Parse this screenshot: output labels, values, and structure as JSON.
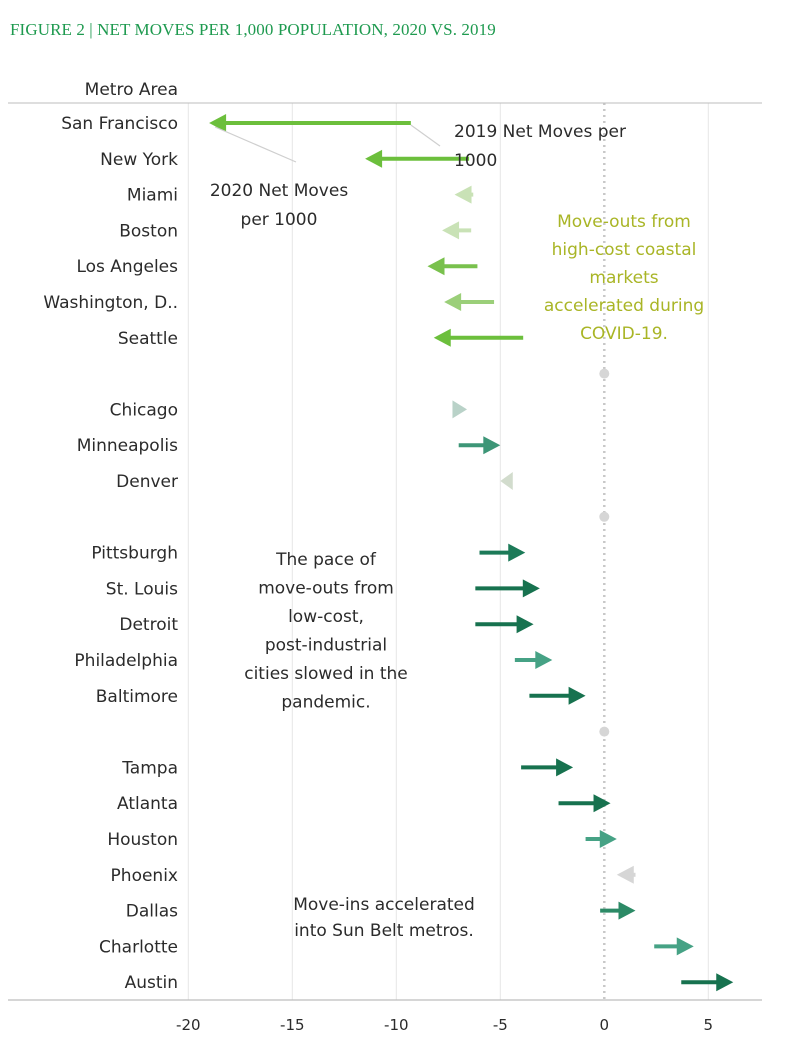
{
  "figure_title": "FIGURE 2 | NET MOVES PER 1,000 POPULATION, 2020 VS. 2019",
  "colors": {
    "title": "#1e9a4f",
    "grid": "#e6e6e6",
    "axis": "#bdbdbd",
    "zero_line": "#c8c8c8",
    "annotation_yellow": "#a9b526",
    "annotation_dark": "#2b2b2b"
  },
  "chart_data": {
    "type": "arrow",
    "column_header": "Metro Area",
    "xlim": [
      -21,
      7.5
    ],
    "xticks": [
      -20,
      -15,
      -10,
      -5,
      0,
      5
    ],
    "grid": true,
    "rows": [
      {
        "label": "San Francisco",
        "from_2019": -9.3,
        "to_2020": -19.0,
        "color": "#6cbf3c"
      },
      {
        "label": "New York",
        "from_2019": -6.5,
        "to_2020": -11.5,
        "color": "#6cbf3c"
      },
      {
        "label": "Miami",
        "from_2019": -6.3,
        "to_2020": -7.2,
        "color": "#c9e2b6"
      },
      {
        "label": "Boston",
        "from_2019": -6.4,
        "to_2020": -7.8,
        "color": "#c9e2b6"
      },
      {
        "label": "Los Angeles",
        "from_2019": -6.1,
        "to_2020": -8.5,
        "color": "#79c14d"
      },
      {
        "label": "Washington, D..",
        "from_2019": -5.3,
        "to_2020": -7.7,
        "color": "#9bcf79"
      },
      {
        "label": "Seattle",
        "from_2019": -3.9,
        "to_2020": -8.2,
        "color": "#6cbf3c"
      },
      {
        "label": "",
        "from_2019": 0,
        "to_2020": 0,
        "color": "#d6d6d6"
      },
      {
        "label": "Chicago",
        "from_2019": -7.3,
        "to_2020": -6.6,
        "color": "#b9d2c8"
      },
      {
        "label": "Minneapolis",
        "from_2019": -7.0,
        "to_2020": -5.0,
        "color": "#3d9677"
      },
      {
        "label": "Denver",
        "from_2019": -4.4,
        "to_2020": -5.0,
        "color": "#d2dccd"
      },
      {
        "label": "",
        "from_2019": 0,
        "to_2020": 0,
        "color": "#d6d6d6"
      },
      {
        "label": "Pittsburgh",
        "from_2019": -6.0,
        "to_2020": -3.8,
        "color": "#1c7a58"
      },
      {
        "label": "St. Louis",
        "from_2019": -6.2,
        "to_2020": -3.1,
        "color": "#17724f"
      },
      {
        "label": "Detroit",
        "from_2019": -6.2,
        "to_2020": -3.4,
        "color": "#17724f"
      },
      {
        "label": "Philadelphia",
        "from_2019": -4.3,
        "to_2020": -2.5,
        "color": "#46a285"
      },
      {
        "label": "Baltimore",
        "from_2019": -3.6,
        "to_2020": -0.9,
        "color": "#17724f"
      },
      {
        "label": "",
        "from_2019": 0,
        "to_2020": 0,
        "color": "#d6d6d6"
      },
      {
        "label": "Tampa",
        "from_2019": -4.0,
        "to_2020": -1.5,
        "color": "#17724f"
      },
      {
        "label": "Atlanta",
        "from_2019": -2.2,
        "to_2020": 0.3,
        "color": "#17724f"
      },
      {
        "label": "Houston",
        "from_2019": -0.9,
        "to_2020": 0.6,
        "color": "#46a285"
      },
      {
        "label": "Phoenix",
        "from_2019": 1.5,
        "to_2020": 0.6,
        "color": "#d6d6d6"
      },
      {
        "label": "Dallas",
        "from_2019": -0.2,
        "to_2020": 1.5,
        "color": "#2c8a66"
      },
      {
        "label": "Charlotte",
        "from_2019": 2.4,
        "to_2020": 4.3,
        "color": "#46a285"
      },
      {
        "label": "Austin",
        "from_2019": 3.7,
        "to_2020": 6.2,
        "color": "#17724f"
      }
    ],
    "annotations": {
      "label_2019": [
        "2019 Net Moves per",
        "1000"
      ],
      "label_2020": [
        "2020 Net Moves",
        "per 1000"
      ],
      "coastal": [
        "Move-outs from",
        "high-cost coastal",
        "markets",
        "accelerated during",
        "COVID-19."
      ],
      "industrial": [
        "The pace of",
        "move-outs from",
        "low-cost,",
        "post-industrial",
        "cities slowed in the",
        "pandemic."
      ],
      "sunbelt": [
        "Move-ins accelerated",
        "into Sun Belt metros."
      ]
    }
  }
}
